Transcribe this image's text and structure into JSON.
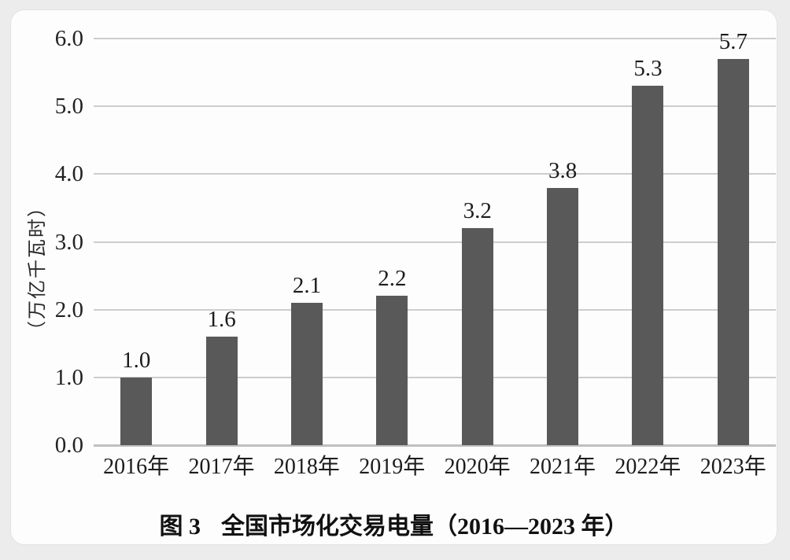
{
  "page": {
    "background_color": "#ececec",
    "card_background_color": "#fdfdfd"
  },
  "chart_data": {
    "type": "bar",
    "title": "图 3  全国市场化交易电量（2016—2023 年）",
    "ylabel": "（万亿千瓦时）",
    "xlabel": "",
    "categories": [
      "2016年",
      "2017年",
      "2018年",
      "2019年",
      "2020年",
      "2021年",
      "2022年",
      "2023年"
    ],
    "values": [
      1.0,
      1.6,
      2.1,
      2.2,
      3.2,
      3.8,
      5.3,
      5.7
    ],
    "data_labels": [
      "1.0",
      "1.6",
      "2.1",
      "2.2",
      "3.2",
      "3.8",
      "5.3",
      "5.7"
    ],
    "ytick_values": [
      0,
      1,
      2,
      3,
      4,
      5,
      6
    ],
    "ytick_labels": [
      "0.0",
      "1.0",
      "2.0",
      "3.0",
      "4.0",
      "5.0",
      "6.0"
    ],
    "ylim": [
      0,
      6
    ],
    "grid": true,
    "legend_position": "none",
    "bar_color": "#595959",
    "grid_color": "#cdcdcd",
    "axis_color": "#bfbfbf"
  },
  "caption": {
    "figure_label": "图 3",
    "title_text": "全国市场化交易电量（2016—2023 年）"
  }
}
